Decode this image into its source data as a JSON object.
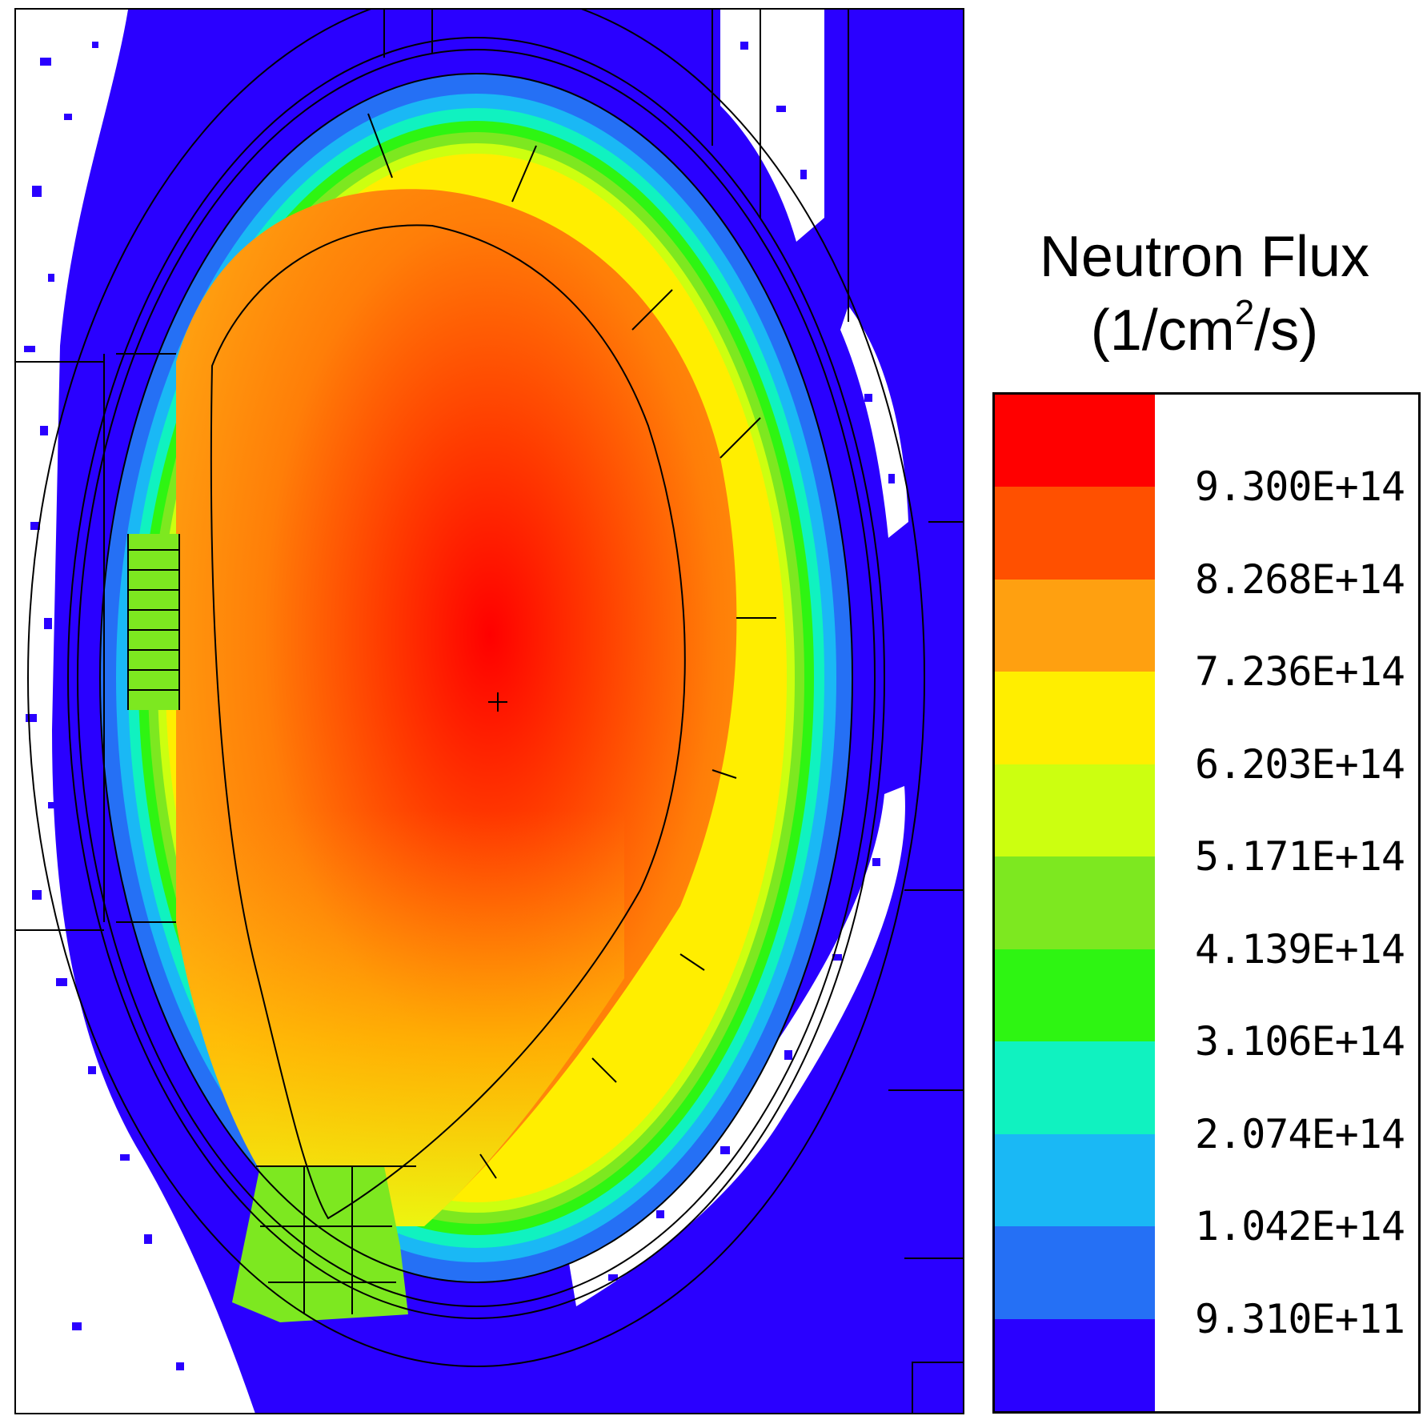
{
  "legend": {
    "title_line1": "Neutron Flux",
    "title_line2_base": "(1/cm",
    "title_line2_sup": "2",
    "title_line2_end": "/s)",
    "swatch_colors": [
      "#ff0000",
      "#ff5000",
      "#ffa010",
      "#ffee00",
      "#ccff10",
      "#7de820",
      "#2ef512",
      "#10f2c0",
      "#1ab8f5",
      "#2570f5",
      "#2a00ff"
    ],
    "labels": [
      "9.300E+14",
      "8.268E+14",
      "7.236E+14",
      "6.203E+14",
      "5.171E+14",
      "4.139E+14",
      "3.106E+14",
      "2.074E+14",
      "1.042E+14",
      "9.310E+11"
    ]
  },
  "map": {
    "background_color": "#2a00ff",
    "core_color": "#ff0000",
    "outer_color": "#ffa010",
    "line_color": "#000000",
    "void_color": "#ffffff"
  }
}
